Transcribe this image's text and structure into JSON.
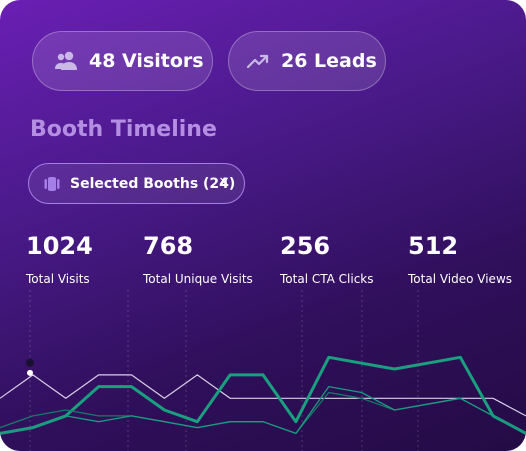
{
  "header": {
    "visitors_label": "48 Visitors",
    "leads_label": "26 Leads"
  },
  "section": {
    "title": "Booth Timeline"
  },
  "filter": {
    "label": "Selected Booths (24)",
    "close": "×"
  },
  "stats": [
    {
      "value": "1024",
      "label": "Total Visits"
    },
    {
      "value": "768",
      "label": "Total Unique Visits"
    },
    {
      "value": "256",
      "label": "Total CTA Clicks"
    },
    {
      "value": "512",
      "label": "Total Video Views"
    }
  ],
  "colors": {
    "accent_green": "#1aa07f",
    "white_line": "#d9cfe8",
    "chip_border": "#a67ee8",
    "title": "#b48ee2"
  },
  "icons": {
    "visitors": "users-icon",
    "leads": "trending-up-icon",
    "filter": "booth-icon",
    "close": "close-icon"
  },
  "chart_data": {
    "type": "line",
    "x": [
      1,
      2,
      3,
      4,
      5,
      6,
      7,
      8,
      9,
      10,
      11,
      12,
      13,
      14,
      15,
      16,
      17
    ],
    "series": [
      {
        "values": [
          48,
          56,
          48,
          56,
          56,
          48,
          56,
          48,
          48,
          48,
          48,
          48,
          48,
          48,
          48,
          48,
          42
        ]
      },
      {
        "values": [
          36,
          38,
          42,
          52,
          52,
          44,
          40,
          56,
          56,
          40,
          62,
          60,
          58,
          60,
          62,
          42,
          36
        ]
      },
      {
        "values": [
          38,
          42,
          44,
          42,
          42,
          40,
          38,
          40,
          40,
          36,
          50,
          48,
          44,
          46,
          48,
          42,
          36
        ]
      },
      {
        "values": [
          36,
          38,
          42,
          40,
          42,
          40,
          38,
          40,
          40,
          36,
          52,
          50,
          44,
          46,
          48,
          42,
          36
        ]
      }
    ],
    "ylim": [
      30,
      85
    ],
    "grid": "vertical dashed"
  }
}
